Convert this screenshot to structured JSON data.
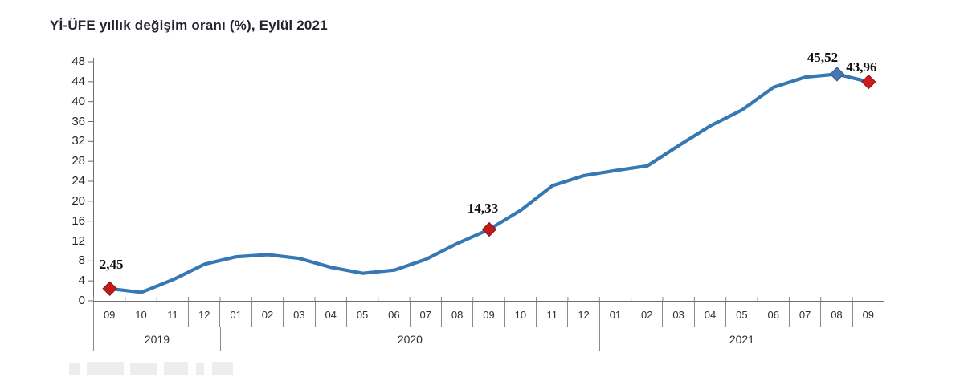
{
  "title": "Yİ-ÜFE yıllık değişim oranı (%), Eylül 2021",
  "chart_data": {
    "type": "line",
    "title": "Yİ-ÜFE yıllık değişim oranı (%), Eylül 2021",
    "x_groups": [
      {
        "year": "2019",
        "months": [
          "09",
          "10",
          "11",
          "12"
        ]
      },
      {
        "year": "2020",
        "months": [
          "01",
          "02",
          "03",
          "04",
          "05",
          "06",
          "07",
          "08",
          "09",
          "10",
          "11",
          "12"
        ]
      },
      {
        "year": "2021",
        "months": [
          "01",
          "02",
          "03",
          "04",
          "05",
          "06",
          "07",
          "08",
          "09"
        ]
      }
    ],
    "series": [
      {
        "name": "Yİ-ÜFE yıllık değişim oranı (%)",
        "values": [
          2.45,
          1.7,
          4.26,
          7.36,
          8.84,
          9.26,
          8.5,
          6.71,
          5.53,
          6.17,
          8.33,
          11.53,
          14.33,
          18.2,
          23.11,
          25.15,
          26.16,
          27.09,
          31.2,
          35.17,
          38.33,
          42.89,
          44.92,
          45.52,
          43.96
        ]
      }
    ],
    "y_ticks": [
      "0",
      "4",
      "8",
      "12",
      "16",
      "20",
      "24",
      "28",
      "32",
      "36",
      "40",
      "44",
      "48"
    ],
    "ylim": [
      0,
      48
    ],
    "grid": false,
    "legend": false,
    "line_color": "#3578b4",
    "marker_points": [
      {
        "index": 0,
        "label": "2,45",
        "color": "#c01a1a",
        "edge": "#8d1111"
      },
      {
        "index": 12,
        "label": "14,33",
        "color": "#c01a1a",
        "edge": "#8d1111"
      },
      {
        "index": 23,
        "label": "45,52",
        "color": "#4677b2",
        "edge": "#35588a"
      },
      {
        "index": 24,
        "label": "43,96",
        "color": "#cc1d1d",
        "edge": "#8d1111"
      }
    ]
  }
}
